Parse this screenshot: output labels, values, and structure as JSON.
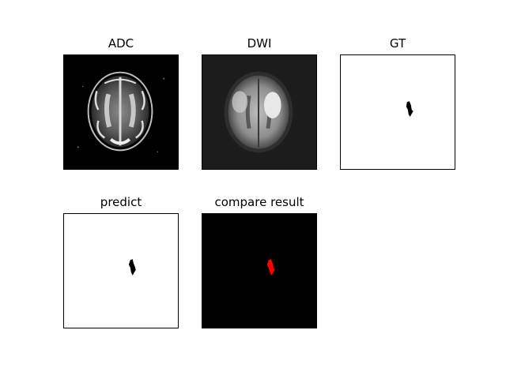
{
  "figure": {
    "panels": [
      {
        "title": "ADC"
      },
      {
        "title": "DWI"
      },
      {
        "title": "GT"
      },
      {
        "title": "predict"
      },
      {
        "title": "compare result"
      }
    ],
    "colors": {
      "background": "#ffffff",
      "mask_black": "#000000",
      "compare_highlight": "#ff0000"
    }
  }
}
